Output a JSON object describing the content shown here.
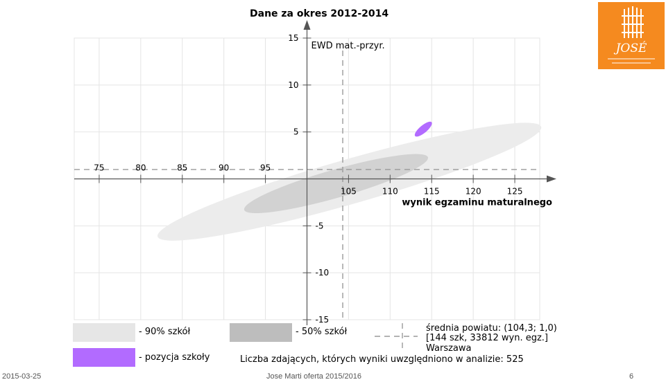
{
  "title": "Dane za okres 2012-2014",
  "logo": {
    "text": "JOSÉ"
  },
  "chart_data": {
    "type": "scatter",
    "xlabel": "wynik egzaminu maturalnego",
    "ylabel": "EWD mat.-przyr.",
    "xlim": [
      72,
      128
    ],
    "ylim": [
      -15,
      15
    ],
    "x_axis_cross": 100,
    "y_axis_cross": 0,
    "x_ticks_left": [
      "75",
      "80",
      "85",
      "90",
      "95"
    ],
    "x_ticks_right": [
      "105",
      "110",
      "115",
      "120",
      "125"
    ],
    "y_ticks_up": [
      "5",
      "10",
      "15"
    ],
    "y_ticks_down": [
      "-5",
      "-10",
      "-15"
    ],
    "grid": true,
    "ellipse_90": {
      "center": [
        105.1,
        -0.3
      ],
      "half_axis_along": 24.0,
      "half_axis_across": 2.7,
      "angle_deg": 16,
      "color": "#ececec"
    },
    "ellipse_50": {
      "center": [
        103.5,
        -0.5
      ],
      "half_axis_along": 11.5,
      "half_axis_across": 1.7,
      "angle_deg": 16,
      "color": "#d2d2d2"
    },
    "school": {
      "center": [
        114.0,
        5.3
      ],
      "half_axis_along": 1.3,
      "half_axis_across": 0.45,
      "angle_deg": 40,
      "color": "#b26bff"
    },
    "powiat_mean": {
      "x": 104.3,
      "y": 1.0
    }
  },
  "legend": {
    "p90": "- 90% szkół",
    "p50": "- 50% szkół",
    "school": "- pozycja szkoły",
    "mean_line1": "średnia powiatu: (104,3; 1,0)",
    "mean_line2": "[144 szk, 33812 wyn. egz.]",
    "mean_line3": "Warszawa",
    "count": "Liczba zdających, których wyniki uwzględniono w analizie: 525"
  },
  "footer": {
    "date": "2015-03-25",
    "center": "Jose Marti oferta 2015/2016",
    "page": "6"
  }
}
